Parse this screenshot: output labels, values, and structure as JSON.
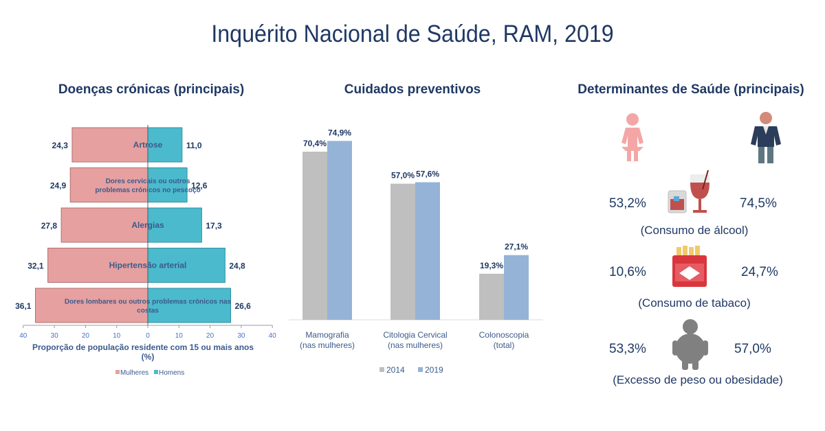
{
  "title": "Inquérito Nacional de Saúde, RAM, 2019",
  "sections": {
    "chronic": "Doenças crónicas (principais)",
    "preventive": "Cuidados preventivos",
    "determinants": "Determinantes de Saúde (principais)"
  },
  "chart_data": [
    {
      "type": "bar",
      "orientation": "horizontal-diverging",
      "title": "Doenças crónicas (principais)",
      "xlabel": "Proporção de população residente com 15 ou mais anos (%)",
      "xlim": [
        -40,
        40
      ],
      "xticks": [
        "40",
        "30",
        "20",
        "10",
        "0",
        "10",
        "20",
        "30",
        "40"
      ],
      "categories": [
        [
          "Artrose"
        ],
        [
          "Dores cervicais ou outros",
          "problemas crónicos no pescoço"
        ],
        [
          "Alergias"
        ],
        [
          "Hipertensão arterial"
        ],
        [
          "Dores lombares ou outros problemas crónicos nas",
          "costas"
        ]
      ],
      "series": [
        {
          "name": "Mulheres",
          "color": "#e6a0a0",
          "values": [
            24.3,
            24.9,
            27.8,
            32.1,
            36.1
          ],
          "labels": [
            "24,3",
            "24,9",
            "27,8",
            "32,1",
            "36,1"
          ]
        },
        {
          "name": "Homens",
          "color": "#4bbacd",
          "values": [
            11.0,
            12.6,
            17.3,
            24.8,
            26.6
          ],
          "labels": [
            "11,0",
            "12,6",
            "17,3",
            "24,8",
            "26,6"
          ]
        }
      ],
      "legend_position": "bottom"
    },
    {
      "type": "bar",
      "title": "Cuidados preventivos",
      "categories": [
        [
          "Mamografia",
          "(nas mulheres)"
        ],
        [
          "Citologia Cervical",
          "(nas mulheres)"
        ],
        [
          "Colonoscopia",
          "(total)"
        ]
      ],
      "series": [
        {
          "name": "2014",
          "color": "#bfbfbf",
          "values": [
            70.4,
            57.0,
            19.3
          ],
          "labels": [
            "70,4%",
            "57,0%",
            "19,3%"
          ]
        },
        {
          "name": "2019",
          "color": "#95b3d7",
          "values": [
            74.9,
            57.6,
            27.1
          ],
          "labels": [
            "74,9%",
            "57,6%",
            "27,1%"
          ]
        }
      ],
      "ylim": [
        0,
        100
      ],
      "legend_position": "bottom"
    }
  ],
  "determinants": {
    "items": [
      {
        "female": "53,2%",
        "male": "74,5%",
        "caption": "(Consumo de álcool)",
        "icon": "wine-glass-icon"
      },
      {
        "female": "10,6%",
        "male": "24,7%",
        "caption": "(Consumo de tabaco)",
        "icon": "cigarette-pack-icon"
      },
      {
        "female": "53,3%",
        "male": "57,0%",
        "caption": "(Excesso de peso ou obesidade)",
        "icon": "overweight-person-icon"
      }
    ],
    "colors": {
      "female": "#f4a6a6",
      "male_jacket": "#2b3d5b",
      "male_pants": "#5f7682"
    }
  }
}
